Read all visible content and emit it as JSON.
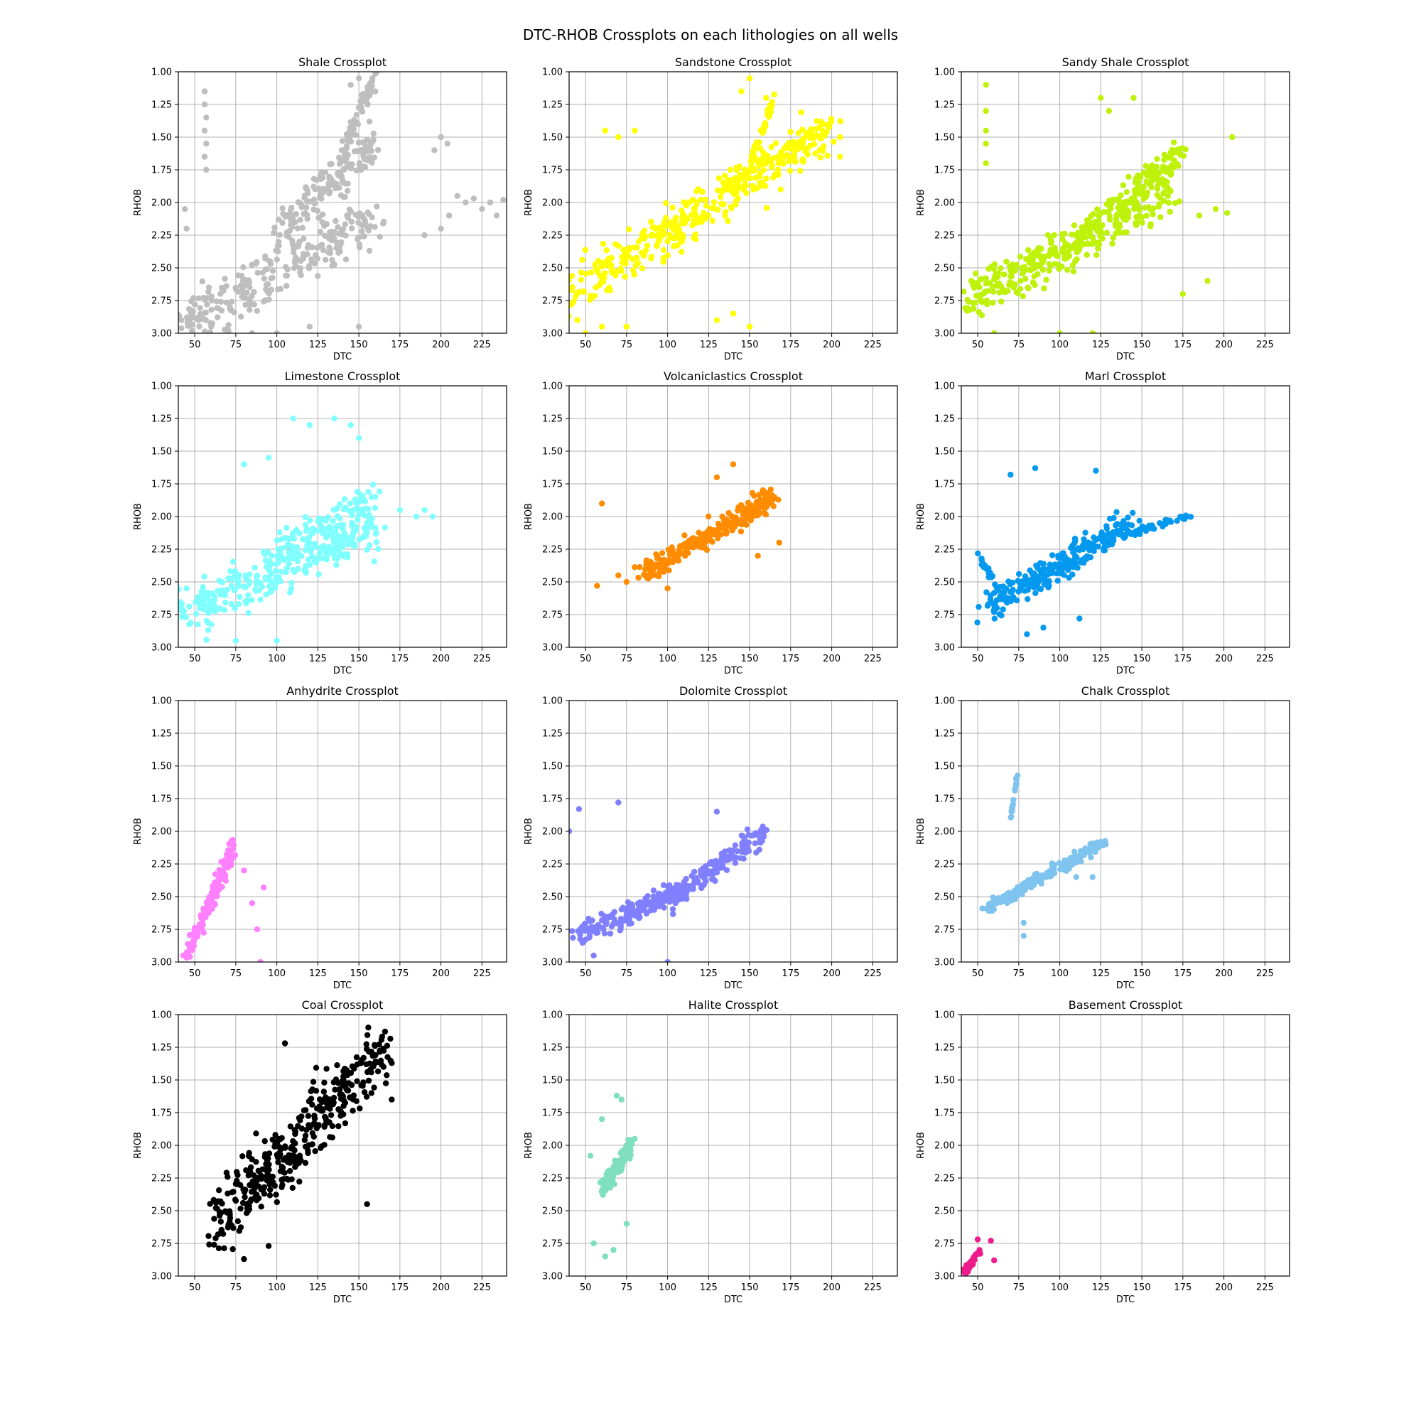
{
  "figure": {
    "suptitle": "DTC-RHOB Crossplots on each lithologies on all wells"
  },
  "axes_common": {
    "xlabel": "DTC",
    "ylabel": "RHOB",
    "xlim": [
      40,
      240
    ],
    "ylim": [
      3.0,
      1.0
    ],
    "y_inverted": true,
    "xticks": [
      50,
      75,
      100,
      125,
      150,
      175,
      200,
      225
    ],
    "xtick_labels": [
      "50",
      "75",
      "100",
      "125",
      "150",
      "175",
      "200",
      "225"
    ],
    "yticks": [
      1.0,
      1.25,
      1.5,
      1.75,
      2.0,
      2.25,
      2.5,
      2.75,
      3.0
    ],
    "ytick_labels": [
      "1.00",
      "1.25",
      "1.50",
      "1.75",
      "2.00",
      "2.25",
      "2.50",
      "2.75",
      "3.00"
    ],
    "grid": true
  },
  "chart_data": [
    {
      "type": "scatter",
      "title": "Shale Crossplot",
      "color": "#bebebe",
      "xlabel": "DTC",
      "ylabel": "RHOB",
      "xlim": [
        40,
        240
      ],
      "ylim": [
        3.0,
        1.0
      ],
      "clusters": [
        {
          "x": [
            40,
            160
          ],
          "y": [
            2.95,
            2.1
          ],
          "spread": 0.34,
          "n": 260
        },
        {
          "x": [
            100,
            160
          ],
          "y": [
            2.2,
            1.55
          ],
          "spread": 0.3,
          "n": 150
        },
        {
          "x": [
            140,
            160
          ],
          "y": [
            1.6,
            1.05
          ],
          "spread": 0.12,
          "n": 60
        }
      ],
      "points": [
        {
          "x": 56,
          "y": 1.15
        },
        {
          "x": 56,
          "y": 1.25
        },
        {
          "x": 57,
          "y": 1.35
        },
        {
          "x": 56,
          "y": 1.45
        },
        {
          "x": 57,
          "y": 1.55
        },
        {
          "x": 56,
          "y": 1.65
        },
        {
          "x": 57,
          "y": 1.75
        },
        {
          "x": 44,
          "y": 2.05
        },
        {
          "x": 150,
          "y": 1.05
        },
        {
          "x": 160,
          "y": 1.15
        },
        {
          "x": 145,
          "y": 1.1
        },
        {
          "x": 200,
          "y": 1.5
        },
        {
          "x": 204,
          "y": 1.55
        },
        {
          "x": 196,
          "y": 1.6
        },
        {
          "x": 210,
          "y": 1.95
        },
        {
          "x": 215,
          "y": 2.0
        },
        {
          "x": 220,
          "y": 1.97
        },
        {
          "x": 225,
          "y": 2.05
        },
        {
          "x": 230,
          "y": 2.0
        },
        {
          "x": 238,
          "y": 1.98
        },
        {
          "x": 234,
          "y": 2.1
        },
        {
          "x": 205,
          "y": 2.1
        },
        {
          "x": 200,
          "y": 2.2
        },
        {
          "x": 190,
          "y": 2.25
        },
        {
          "x": 120,
          "y": 2.95
        },
        {
          "x": 150,
          "y": 2.95
        },
        {
          "x": 100,
          "y": 3.0
        },
        {
          "x": 85,
          "y": 3.0
        },
        {
          "x": 60,
          "y": 2.95
        },
        {
          "x": 45,
          "y": 2.2
        }
      ]
    },
    {
      "type": "scatter",
      "title": "Sandstone Crossplot",
      "color": "#ffff00",
      "xlabel": "DTC",
      "ylabel": "RHOB",
      "xlim": [
        40,
        240
      ],
      "ylim": [
        3.0,
        1.0
      ],
      "clusters": [
        {
          "x": [
            40,
            195
          ],
          "y": [
            2.7,
            1.5
          ],
          "spread": 0.3,
          "n": 320
        },
        {
          "x": [
            130,
            200
          ],
          "y": [
            1.9,
            1.4
          ],
          "spread": 0.1,
          "n": 90
        },
        {
          "x": [
            150,
            165
          ],
          "y": [
            1.7,
            1.2
          ],
          "spread": 0.08,
          "n": 40
        }
      ],
      "points": [
        {
          "x": 45,
          "y": 2.9
        },
        {
          "x": 50,
          "y": 3.0
        },
        {
          "x": 60,
          "y": 2.95
        },
        {
          "x": 75,
          "y": 2.95
        },
        {
          "x": 62,
          "y": 1.45
        },
        {
          "x": 70,
          "y": 1.5
        },
        {
          "x": 80,
          "y": 1.45
        },
        {
          "x": 150,
          "y": 1.05
        },
        {
          "x": 160,
          "y": 1.2
        },
        {
          "x": 145,
          "y": 1.15
        },
        {
          "x": 205,
          "y": 1.5
        },
        {
          "x": 205,
          "y": 1.65
        },
        {
          "x": 130,
          "y": 2.9
        },
        {
          "x": 140,
          "y": 2.85
        },
        {
          "x": 150,
          "y": 2.95
        }
      ]
    },
    {
      "type": "scatter",
      "title": "Sandy Shale Crossplot",
      "color": "#bff20a",
      "xlabel": "DTC",
      "ylabel": "RHOB",
      "xlim": [
        40,
        240
      ],
      "ylim": [
        3.0,
        1.0
      ],
      "clusters": [
        {
          "x": [
            45,
            170
          ],
          "y": [
            2.75,
            1.9
          ],
          "spread": 0.3,
          "n": 300
        },
        {
          "x": [
            110,
            175
          ],
          "y": [
            2.3,
            1.6
          ],
          "spread": 0.22,
          "n": 140
        }
      ],
      "points": [
        {
          "x": 55,
          "y": 1.1
        },
        {
          "x": 55,
          "y": 1.3
        },
        {
          "x": 55,
          "y": 1.45
        },
        {
          "x": 55,
          "y": 1.55
        },
        {
          "x": 55,
          "y": 1.7
        },
        {
          "x": 125,
          "y": 1.2
        },
        {
          "x": 130,
          "y": 1.3
        },
        {
          "x": 145,
          "y": 1.2
        },
        {
          "x": 205,
          "y": 1.5
        },
        {
          "x": 195,
          "y": 2.05
        },
        {
          "x": 202,
          "y": 2.08
        },
        {
          "x": 185,
          "y": 2.1
        },
        {
          "x": 100,
          "y": 3.0
        },
        {
          "x": 120,
          "y": 3.0
        },
        {
          "x": 60,
          "y": 3.0
        },
        {
          "x": 190,
          "y": 2.6
        },
        {
          "x": 175,
          "y": 2.7
        }
      ]
    },
    {
      "type": "scatter",
      "title": "Limestone Crossplot",
      "color": "#80ffff",
      "xlabel": "DTC",
      "ylabel": "RHOB",
      "xlim": [
        40,
        240
      ],
      "ylim": [
        3.0,
        1.0
      ],
      "clusters": [
        {
          "x": [
            40,
            160
          ],
          "y": [
            2.75,
            2.1
          ],
          "spread": 0.3,
          "n": 300
        },
        {
          "x": [
            95,
            160
          ],
          "y": [
            2.3,
            1.85
          ],
          "spread": 0.2,
          "n": 100
        }
      ],
      "points": [
        {
          "x": 110,
          "y": 1.25
        },
        {
          "x": 120,
          "y": 1.3
        },
        {
          "x": 135,
          "y": 1.25
        },
        {
          "x": 145,
          "y": 1.3
        },
        {
          "x": 150,
          "y": 1.4
        },
        {
          "x": 95,
          "y": 1.55
        },
        {
          "x": 80,
          "y": 1.6
        },
        {
          "x": 175,
          "y": 1.95
        },
        {
          "x": 185,
          "y": 2.0
        },
        {
          "x": 195,
          "y": 2.0
        },
        {
          "x": 190,
          "y": 1.95
        },
        {
          "x": 75,
          "y": 2.95
        },
        {
          "x": 100,
          "y": 2.95
        },
        {
          "x": 45,
          "y": 2.55
        },
        {
          "x": 160,
          "y": 1.85
        }
      ]
    },
    {
      "type": "scatter",
      "title": "Volcaniclastics Crossplot",
      "color": "#ff8c00",
      "xlabel": "DTC",
      "ylabel": "RHOB",
      "xlim": [
        40,
        240
      ],
      "ylim": [
        3.0,
        1.0
      ],
      "clusters": [
        {
          "x": [
            85,
            165
          ],
          "y": [
            2.45,
            1.85
          ],
          "spread": 0.14,
          "n": 260
        }
      ],
      "points": [
        {
          "x": 57,
          "y": 2.53
        },
        {
          "x": 60,
          "y": 1.9
        },
        {
          "x": 70,
          "y": 2.45
        },
        {
          "x": 75,
          "y": 2.5
        },
        {
          "x": 140,
          "y": 1.6
        },
        {
          "x": 168,
          "y": 2.2
        },
        {
          "x": 155,
          "y": 2.3
        },
        {
          "x": 100,
          "y": 2.55
        },
        {
          "x": 130,
          "y": 1.7
        }
      ]
    },
    {
      "type": "scatter",
      "title": "Marl Crossplot",
      "color": "#0499ef",
      "xlabel": "DTC",
      "ylabel": "RHOB",
      "xlim": [
        40,
        240
      ],
      "ylim": [
        3.0,
        1.0
      ],
      "clusters": [
        {
          "x": [
            55,
            145
          ],
          "y": [
            2.7,
            2.05
          ],
          "spread": 0.2,
          "n": 250
        },
        {
          "x": [
            140,
            180
          ],
          "y": [
            2.15,
            1.98
          ],
          "spread": 0.04,
          "n": 50
        },
        {
          "x": [
            50,
            60
          ],
          "y": [
            2.3,
            2.5
          ],
          "spread": 0.08,
          "n": 20
        }
      ],
      "points": [
        {
          "x": 85,
          "y": 1.63
        },
        {
          "x": 70,
          "y": 1.68
        },
        {
          "x": 122,
          "y": 1.65
        },
        {
          "x": 112,
          "y": 2.78
        },
        {
          "x": 80,
          "y": 2.9
        },
        {
          "x": 90,
          "y": 2.85
        }
      ]
    },
    {
      "type": "scatter",
      "title": "Anhydrite Crossplot",
      "color": "#ff80ff",
      "xlabel": "DTC",
      "ylabel": "RHOB",
      "xlim": [
        40,
        240
      ],
      "ylim": [
        3.0,
        1.0
      ],
      "clusters": [
        {
          "x": [
            45,
            75
          ],
          "y": [
            2.95,
            2.1
          ],
          "spread": 0.15,
          "n": 150
        }
      ],
      "points": [
        {
          "x": 92,
          "y": 2.43
        },
        {
          "x": 85,
          "y": 2.55
        },
        {
          "x": 80,
          "y": 2.3
        },
        {
          "x": 88,
          "y": 2.75
        },
        {
          "x": 90,
          "y": 3.0
        },
        {
          "x": 43,
          "y": 2.95
        }
      ]
    },
    {
      "type": "scatter",
      "title": "Dolomite Crossplot",
      "color": "#8080ff",
      "xlabel": "DTC",
      "ylabel": "RHOB",
      "xlim": [
        40,
        240
      ],
      "ylim": [
        3.0,
        1.0
      ],
      "clusters": [
        {
          "x": [
            45,
            110
          ],
          "y": [
            2.8,
            2.45
          ],
          "spread": 0.15,
          "n": 180
        },
        {
          "x": [
            105,
            160
          ],
          "y": [
            2.5,
            2.0
          ],
          "spread": 0.15,
          "n": 140
        }
      ],
      "points": [
        {
          "x": 46,
          "y": 1.83
        },
        {
          "x": 40,
          "y": 2.0
        },
        {
          "x": 70,
          "y": 1.78
        },
        {
          "x": 130,
          "y": 1.85
        },
        {
          "x": 100,
          "y": 3.0
        },
        {
          "x": 55,
          "y": 2.95
        }
      ]
    },
    {
      "type": "scatter",
      "title": "Chalk Crossplot",
      "color": "#7fc3ef",
      "xlabel": "DTC",
      "ylabel": "RHOB",
      "xlim": [
        40,
        240
      ],
      "ylim": [
        3.0,
        1.0
      ],
      "clusters": [
        {
          "x": [
            55,
            125
          ],
          "y": [
            2.6,
            2.1
          ],
          "spread": 0.06,
          "n": 220
        },
        {
          "x": [
            70,
            75
          ],
          "y": [
            1.9,
            1.5
          ],
          "spread": 0.03,
          "n": 18
        }
      ],
      "points": [
        {
          "x": 78,
          "y": 2.8
        },
        {
          "x": 78,
          "y": 2.7
        },
        {
          "x": 120,
          "y": 2.35
        },
        {
          "x": 110,
          "y": 2.35
        },
        {
          "x": 128,
          "y": 2.1
        }
      ]
    },
    {
      "type": "scatter",
      "title": "Coal Crossplot",
      "color": "#000000",
      "xlabel": "DTC",
      "ylabel": "RHOB",
      "xlim": [
        40,
        240
      ],
      "ylim": [
        3.0,
        1.0
      ],
      "clusters": [
        {
          "x": [
            60,
            165
          ],
          "y": [
            2.65,
            1.3
          ],
          "spread": 0.45,
          "n": 380
        }
      ],
      "points": [
        {
          "x": 80,
          "y": 2.87
        },
        {
          "x": 95,
          "y": 2.77
        },
        {
          "x": 170,
          "y": 1.65
        },
        {
          "x": 165,
          "y": 1.4
        },
        {
          "x": 105,
          "y": 1.22
        },
        {
          "x": 155,
          "y": 2.45
        }
      ]
    },
    {
      "type": "scatter",
      "title": "Halite Crossplot",
      "color": "#7fdfbf",
      "xlabel": "DTC",
      "ylabel": "RHOB",
      "xlim": [
        40,
        240
      ],
      "ylim": [
        3.0,
        1.0
      ],
      "clusters": [
        {
          "x": [
            60,
            78
          ],
          "y": [
            2.35,
            2.0
          ],
          "spread": 0.12,
          "n": 120
        }
      ],
      "points": [
        {
          "x": 69,
          "y": 1.62
        },
        {
          "x": 72,
          "y": 1.65
        },
        {
          "x": 60,
          "y": 1.8
        },
        {
          "x": 55,
          "y": 2.75
        },
        {
          "x": 62,
          "y": 2.85
        },
        {
          "x": 67,
          "y": 2.8
        },
        {
          "x": 53,
          "y": 2.08
        },
        {
          "x": 80,
          "y": 1.95
        },
        {
          "x": 75,
          "y": 2.6
        }
      ]
    },
    {
      "type": "scatter",
      "title": "Basement Crossplot",
      "color": "#ee1b8c",
      "xlabel": "DTC",
      "ylabel": "RHOB",
      "xlim": [
        40,
        240
      ],
      "ylim": [
        3.0,
        1.0
      ],
      "clusters": [
        {
          "x": [
            42,
            52
          ],
          "y": [
            2.97,
            2.8
          ],
          "spread": 0.05,
          "n": 40
        }
      ],
      "points": [
        {
          "x": 58,
          "y": 2.73
        },
        {
          "x": 60,
          "y": 2.88
        },
        {
          "x": 50,
          "y": 2.72
        },
        {
          "x": 40,
          "y": 2.95
        }
      ]
    }
  ]
}
